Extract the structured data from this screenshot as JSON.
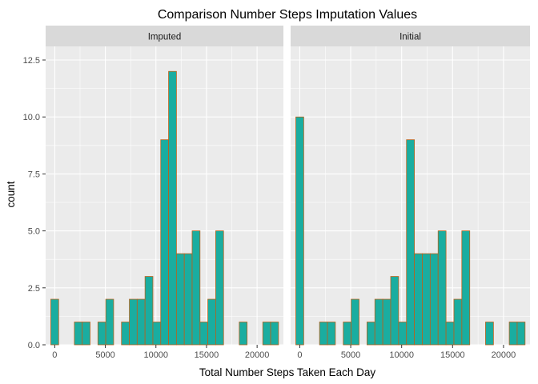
{
  "chart_data": {
    "type": "bar",
    "title": "Comparison Number Steps Imputation Values",
    "xlabel": "Total Number Steps Taken Each Day",
    "ylabel": "count",
    "xlim": [
      -900,
      22600
    ],
    "ylim": [
      0,
      12.5
    ],
    "x_ticks": [
      "0",
      "5000",
      "10000",
      "15000",
      "20000"
    ],
    "y_ticks": [
      "0.0",
      "2.5",
      "5.0",
      "7.5",
      "10.0",
      "12.5"
    ],
    "bin_width": 776,
    "bin_centers": [
      0,
      776,
      1552,
      2328,
      3104,
      3880,
      4656,
      5432,
      6208,
      6984,
      7760,
      8536,
      9312,
      10088,
      10864,
      11640,
      12416,
      13192,
      13968,
      14744,
      15520,
      16296,
      17072,
      17848,
      18624,
      19400,
      20176,
      20952,
      21728
    ],
    "grid": true,
    "colors": {
      "fill": "#1aada0",
      "outline": "#b8621b",
      "panel": "#ebebeb",
      "strip": "#d9d9d9"
    },
    "panels": [
      {
        "name": "Imputed",
        "values": [
          2,
          0,
          0,
          1,
          1,
          0,
          1,
          2,
          0,
          1,
          2,
          2,
          3,
          1,
          9,
          12,
          4,
          4,
          5,
          1,
          2,
          5,
          0,
          0,
          1,
          0,
          0,
          1,
          1
        ]
      },
      {
        "name": "Initial",
        "values": [
          10,
          0,
          0,
          1,
          1,
          0,
          1,
          2,
          0,
          1,
          2,
          2,
          3,
          1,
          9,
          4,
          4,
          4,
          5,
          1,
          2,
          5,
          0,
          0,
          1,
          0,
          0,
          1,
          1
        ]
      }
    ]
  }
}
